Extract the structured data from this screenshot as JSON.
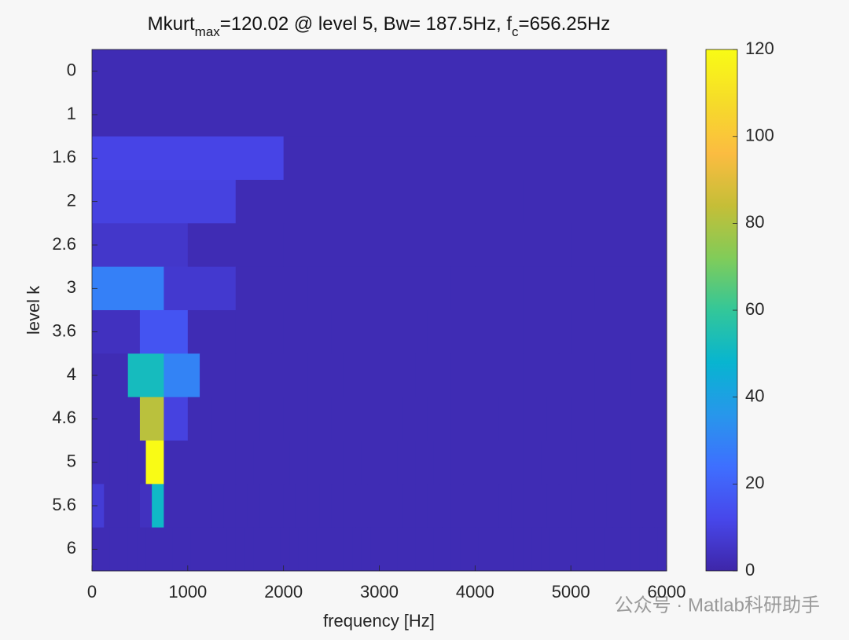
{
  "chart_data": {
    "type": "heatmap",
    "title": [
      "Mkurt",
      "max",
      "=120.02 @ level 5, Bw= 187.5Hz, f",
      "c",
      "=656.25Hz"
    ],
    "x_label": "frequency [Hz]",
    "y_label": "level k",
    "xlim": [
      0,
      6000
    ],
    "xticks": [
      0,
      1000,
      2000,
      3000,
      4000,
      5000,
      6000
    ],
    "levels": [
      0,
      1,
      1.6,
      2,
      2.6,
      3,
      3.6,
      4,
      4.6,
      5,
      5.6,
      6
    ],
    "rows": [
      [
        2
      ],
      [
        2,
        2
      ],
      [
        11,
        2,
        2
      ],
      [
        10,
        2,
        2,
        2
      ],
      [
        6,
        2,
        2,
        2,
        2,
        2
      ],
      [
        29,
        7,
        2,
        2,
        2,
        2,
        2,
        2
      ],
      [
        4,
        16,
        2,
        2,
        2,
        2,
        2,
        2,
        2,
        2,
        2,
        2
      ],
      [
        2,
        52,
        30,
        2,
        2,
        2,
        2,
        2,
        2,
        2,
        2,
        2,
        2,
        2,
        2,
        2
      ],
      [
        2,
        2,
        82,
        10,
        2,
        2,
        2,
        2,
        2,
        2,
        2,
        2,
        2,
        2,
        2,
        2,
        2,
        2,
        2,
        2,
        2,
        2,
        2,
        2
      ],
      [
        2,
        2,
        2,
        120.02,
        2,
        2,
        2,
        2,
        2,
        2,
        2,
        2,
        2,
        2,
        2,
        2,
        2,
        2,
        2,
        2,
        2,
        2,
        2,
        2,
        2,
        2,
        2,
        2,
        2,
        2,
        2,
        2
      ],
      [
        8,
        2,
        2,
        2,
        4,
        50,
        2,
        2,
        2,
        2,
        2,
        2,
        2,
        2,
        2,
        2,
        2,
        2,
        2,
        2,
        2,
        2,
        2,
        2,
        2,
        2,
        2,
        2,
        2,
        2,
        2,
        2,
        2,
        2,
        2,
        2,
        2,
        2,
        2,
        2,
        2,
        2,
        2,
        2,
        2,
        2,
        2,
        2
      ],
      [
        2,
        2,
        2,
        2,
        2,
        2,
        2,
        2,
        2,
        2,
        2,
        2,
        2,
        2,
        2,
        2,
        2,
        2,
        2,
        2,
        2,
        2,
        2,
        2,
        2,
        2,
        2,
        2,
        2,
        2,
        2,
        2,
        2,
        2,
        2,
        2,
        2,
        2,
        2,
        2,
        2,
        2,
        2,
        2,
        2,
        2,
        2,
        2,
        2,
        2,
        2,
        2,
        2,
        2,
        2,
        2,
        2,
        2,
        2,
        2,
        2,
        2,
        2,
        2
      ]
    ],
    "colorbar": {
      "lim": [
        0,
        120.02
      ],
      "ticks": [
        0,
        20,
        40,
        60,
        80,
        100,
        120
      ]
    },
    "colormap": "parula",
    "watermark": "公众号 · Matlab科研助手"
  }
}
